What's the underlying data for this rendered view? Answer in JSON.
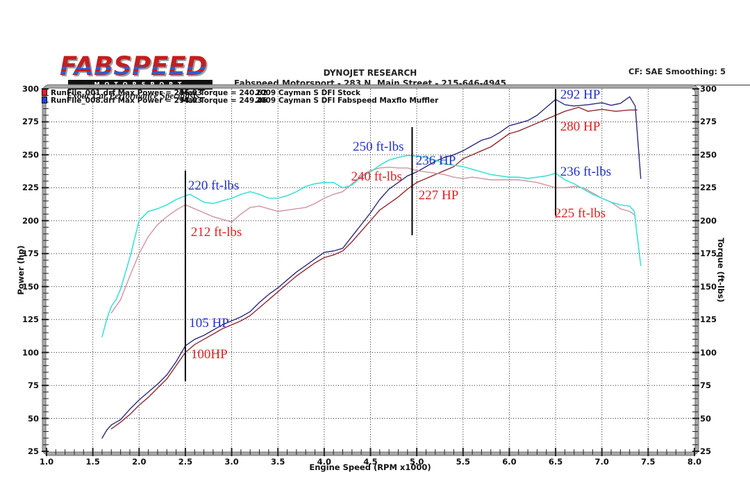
{
  "logo": {
    "brand": "FABSPEED",
    "sub": "MOTORSPORT",
    "tagline": "Exotic Car Performance Specialists"
  },
  "header": {
    "title": "DYNOJET RESEARCH",
    "subtitle": "Fabspeed Motorsport - 283 N. Main Street - 215-646-4945",
    "settings": "CF: SAE  Smoothing: 5"
  },
  "legend": {
    "rows": [
      {
        "file": "RunFile_001.drf Max Power = 286.03",
        "torque": "Max Torque = 240.62",
        "desc": "2009 Cayman S DFI Stock",
        "chip_color": "#e02020"
      },
      {
        "file": "RunFile_008.drf Max Power = 294.03",
        "torque": "Max Torque = 249.46",
        "desc": "2009 Cayman S DFI Fabspeed Maxflo Muffler",
        "chip_color": "#2040e0"
      }
    ]
  },
  "colors": {
    "annotation_blue": "#2232c8",
    "annotation_red": "#e02020",
    "grid": "#1a1a1a",
    "frame": "#a8a8a8",
    "frame_edge": "#6e6e6e",
    "marker": "#000000"
  },
  "chart_data": {
    "type": "line",
    "title": "DYNOJET RESEARCH",
    "xlabel": "Engine Speed (RPM x1000)",
    "ylabel_left": "Power (hp)",
    "ylabel_right": "Torque (ft-lbs)",
    "xlim": [
      1.0,
      8.0
    ],
    "ylim": [
      25,
      300
    ],
    "x_ticks": [
      1.0,
      1.5,
      2.0,
      2.5,
      3.0,
      3.5,
      4.0,
      4.5,
      5.0,
      5.5,
      6.0,
      6.5,
      7.0,
      7.5,
      8.0
    ],
    "y_ticks": [
      25,
      50,
      75,
      100,
      125,
      150,
      175,
      200,
      225,
      250,
      275,
      300
    ],
    "grid": "dotted",
    "legend_position": "top-left",
    "series": [
      {
        "name": "Power - 2009 Cayman S DFI Stock (RunFile_001.drf)",
        "unit": "hp",
        "max": 286.03,
        "color": "#8e2a30",
        "width": 1.4,
        "points": [
          [
            1.7,
            42
          ],
          [
            1.8,
            47
          ],
          [
            1.9,
            53
          ],
          [
            2,
            60
          ],
          [
            2.1,
            66
          ],
          [
            2.2,
            73
          ],
          [
            2.3,
            80
          ],
          [
            2.4,
            90
          ],
          [
            2.5,
            100
          ],
          [
            2.6,
            106
          ],
          [
            2.7,
            110
          ],
          [
            2.8,
            114
          ],
          [
            2.9,
            118
          ],
          [
            3,
            121
          ],
          [
            3.1,
            124
          ],
          [
            3.2,
            128
          ],
          [
            3.3,
            134
          ],
          [
            3.4,
            140
          ],
          [
            3.5,
            146
          ],
          [
            3.6,
            152
          ],
          [
            3.7,
            158
          ],
          [
            3.8,
            163
          ],
          [
            3.9,
            168
          ],
          [
            4,
            172
          ],
          [
            4.1,
            174
          ],
          [
            4.2,
            177
          ],
          [
            4.3,
            184
          ],
          [
            4.4,
            192
          ],
          [
            4.5,
            200
          ],
          [
            4.6,
            208
          ],
          [
            4.7,
            213
          ],
          [
            4.8,
            218
          ],
          [
            4.9,
            224
          ],
          [
            5,
            229
          ],
          [
            5.1,
            232
          ],
          [
            5.2,
            235
          ],
          [
            5.3,
            238
          ],
          [
            5.4,
            241
          ],
          [
            5.5,
            247
          ],
          [
            5.6,
            250
          ],
          [
            5.7,
            253
          ],
          [
            5.8,
            256
          ],
          [
            5.9,
            261
          ],
          [
            6,
            266
          ],
          [
            6.1,
            268
          ],
          [
            6.2,
            271
          ],
          [
            6.3,
            274
          ],
          [
            6.4,
            277
          ],
          [
            6.5,
            280
          ],
          [
            6.6,
            283
          ],
          [
            6.7,
            285
          ],
          [
            6.75,
            286
          ],
          [
            6.85,
            283
          ],
          [
            7,
            284.5
          ],
          [
            7.15,
            283
          ],
          [
            7.3,
            284
          ],
          [
            7.38,
            284
          ]
        ]
      },
      {
        "name": "Power - 2009 Cayman S DFI Fabspeed Maxflo Muffler (RunFile_008.drf)",
        "unit": "hp",
        "max": 294.03,
        "color": "#2a2a7c",
        "width": 1.4,
        "points": [
          [
            1.6,
            35
          ],
          [
            1.65,
            41
          ],
          [
            1.7,
            45
          ],
          [
            1.75,
            47
          ],
          [
            1.8,
            49
          ],
          [
            1.9,
            57
          ],
          [
            2,
            64
          ],
          [
            2.1,
            70
          ],
          [
            2.2,
            76
          ],
          [
            2.3,
            83
          ],
          [
            2.4,
            93
          ],
          [
            2.5,
            105
          ],
          [
            2.6,
            110
          ],
          [
            2.7,
            113
          ],
          [
            2.8,
            117
          ],
          [
            2.9,
            121
          ],
          [
            3,
            124
          ],
          [
            3.1,
            127
          ],
          [
            3.2,
            131
          ],
          [
            3.3,
            138
          ],
          [
            3.4,
            144
          ],
          [
            3.5,
            149
          ],
          [
            3.6,
            155
          ],
          [
            3.7,
            161
          ],
          [
            3.8,
            166
          ],
          [
            3.9,
            171
          ],
          [
            4,
            176
          ],
          [
            4.1,
            177
          ],
          [
            4.2,
            179
          ],
          [
            4.3,
            188
          ],
          [
            4.4,
            197
          ],
          [
            4.5,
            206
          ],
          [
            4.6,
            216
          ],
          [
            4.7,
            224
          ],
          [
            4.8,
            229
          ],
          [
            4.9,
            234
          ],
          [
            5,
            237
          ],
          [
            5.1,
            241
          ],
          [
            5.2,
            245
          ],
          [
            5.3,
            248
          ],
          [
            5.4,
            250
          ],
          [
            5.5,
            253
          ],
          [
            5.6,
            257
          ],
          [
            5.7,
            261
          ],
          [
            5.8,
            263
          ],
          [
            5.9,
            267
          ],
          [
            6,
            272
          ],
          [
            6.1,
            274
          ],
          [
            6.2,
            276
          ],
          [
            6.3,
            280
          ],
          [
            6.4,
            286
          ],
          [
            6.5,
            292
          ],
          [
            6.6,
            288
          ],
          [
            6.7,
            287
          ],
          [
            6.85,
            288
          ],
          [
            7,
            289.5
          ],
          [
            7.1,
            287.5
          ],
          [
            7.2,
            289
          ],
          [
            7.3,
            294
          ],
          [
            7.36,
            287
          ],
          [
            7.42,
            232
          ]
        ]
      },
      {
        "name": "Torque - 2009 Cayman S DFI Stock (RunFile_001.drf)",
        "unit": "ft-lbs",
        "max": 240.62,
        "color": "#cf93a0",
        "width": 1.4,
        "points": [
          [
            1.7,
            130
          ],
          [
            1.8,
            140
          ],
          [
            1.9,
            158
          ],
          [
            2,
            175
          ],
          [
            2.1,
            188
          ],
          [
            2.2,
            197
          ],
          [
            2.3,
            203
          ],
          [
            2.4,
            208
          ],
          [
            2.5,
            212
          ],
          [
            2.6,
            209
          ],
          [
            2.7,
            206
          ],
          [
            2.8,
            203
          ],
          [
            2.9,
            201
          ],
          [
            3,
            199
          ],
          [
            3.1,
            205
          ],
          [
            3.2,
            210
          ],
          [
            3.3,
            211
          ],
          [
            3.4,
            209
          ],
          [
            3.5,
            207
          ],
          [
            3.6,
            208
          ],
          [
            3.7,
            209
          ],
          [
            3.8,
            210
          ],
          [
            3.9,
            213
          ],
          [
            4,
            217
          ],
          [
            4.1,
            220
          ],
          [
            4.2,
            222
          ],
          [
            4.3,
            228
          ],
          [
            4.4,
            234
          ],
          [
            4.5,
            238
          ],
          [
            4.6,
            240
          ],
          [
            4.7,
            240.6
          ],
          [
            4.8,
            240
          ],
          [
            4.9,
            240
          ],
          [
            5,
            238
          ],
          [
            5.1,
            237
          ],
          [
            5.2,
            236
          ],
          [
            5.3,
            235
          ],
          [
            5.4,
            233
          ],
          [
            5.5,
            232
          ],
          [
            5.6,
            233
          ],
          [
            5.7,
            232
          ],
          [
            5.8,
            231
          ],
          [
            5.9,
            231
          ],
          [
            6,
            231
          ],
          [
            6.1,
            231
          ],
          [
            6.2,
            230
          ],
          [
            6.3,
            229
          ],
          [
            6.4,
            227
          ],
          [
            6.5,
            225
          ],
          [
            6.6,
            225
          ],
          [
            6.7,
            226
          ],
          [
            6.8,
            225
          ],
          [
            6.9,
            221
          ],
          [
            7,
            217
          ],
          [
            7.1,
            214
          ],
          [
            7.2,
            209
          ],
          [
            7.3,
            207
          ],
          [
            7.36,
            204
          ]
        ]
      },
      {
        "name": "Torque - 2009 Cayman S DFI Fabspeed Maxflo Muffler (RunFile_008.drf)",
        "unit": "ft-lbs",
        "max": 249.46,
        "color": "#3fe0d8",
        "width": 1.6,
        "points": [
          [
            1.6,
            112
          ],
          [
            1.65,
            125
          ],
          [
            1.7,
            135
          ],
          [
            1.75,
            140
          ],
          [
            1.8,
            148
          ],
          [
            1.9,
            172
          ],
          [
            2,
            200
          ],
          [
            2.1,
            207
          ],
          [
            2.2,
            209
          ],
          [
            2.3,
            212
          ],
          [
            2.4,
            216
          ],
          [
            2.5,
            219
          ],
          [
            2.55,
            220
          ],
          [
            2.6,
            218
          ],
          [
            2.7,
            214
          ],
          [
            2.8,
            213
          ],
          [
            2.9,
            215
          ],
          [
            3,
            217
          ],
          [
            3.1,
            220
          ],
          [
            3.2,
            222
          ],
          [
            3.3,
            220
          ],
          [
            3.4,
            217
          ],
          [
            3.5,
            217
          ],
          [
            3.6,
            219
          ],
          [
            3.7,
            222
          ],
          [
            3.8,
            226
          ],
          [
            3.9,
            228
          ],
          [
            4,
            229
          ],
          [
            4.1,
            229
          ],
          [
            4.2,
            225
          ],
          [
            4.3,
            227
          ],
          [
            4.4,
            233
          ],
          [
            4.5,
            237
          ],
          [
            4.6,
            242
          ],
          [
            4.7,
            246
          ],
          [
            4.8,
            248
          ],
          [
            4.9,
            249.5
          ],
          [
            5,
            249
          ],
          [
            5.1,
            248
          ],
          [
            5.2,
            246
          ],
          [
            5.3,
            243
          ],
          [
            5.4,
            242
          ],
          [
            5.5,
            241
          ],
          [
            5.6,
            239
          ],
          [
            5.7,
            237
          ],
          [
            5.8,
            235
          ],
          [
            5.9,
            234
          ],
          [
            6,
            233
          ],
          [
            6.1,
            233
          ],
          [
            6.2,
            232
          ],
          [
            6.3,
            233
          ],
          [
            6.4,
            234
          ],
          [
            6.5,
            236
          ],
          [
            6.6,
            231
          ],
          [
            6.7,
            228
          ],
          [
            6.8,
            224
          ],
          [
            6.9,
            220
          ],
          [
            7,
            217
          ],
          [
            7.1,
            214
          ],
          [
            7.2,
            212
          ],
          [
            7.3,
            211
          ],
          [
            7.35,
            207
          ],
          [
            7.42,
            166
          ]
        ]
      }
    ],
    "annotations": [
      {
        "text": "220 ft-lbs",
        "color": "blue",
        "x": 2.53,
        "y": 226
      },
      {
        "text": "212 ft-lbs",
        "color": "red",
        "x": 2.56,
        "y": 191
      },
      {
        "text": "105 HP",
        "color": "blue",
        "x": 2.54,
        "y": 122
      },
      {
        "text": "100HP",
        "color": "red",
        "x": 2.56,
        "y": 98
      },
      {
        "text": "250 ft-lbs",
        "color": "blue",
        "x": 4.31,
        "y": 256
      },
      {
        "text": "240 ft-lbs",
        "color": "red",
        "x": 4.29,
        "y": 233
      },
      {
        "text": "236 HP",
        "color": "blue",
        "x": 4.99,
        "y": 245
      },
      {
        "text": "227 HP",
        "color": "red",
        "x": 5.02,
        "y": 219
      },
      {
        "text": "292 HP",
        "color": "blue",
        "x": 6.55,
        "y": 295
      },
      {
        "text": "280 HP",
        "color": "red",
        "x": 6.55,
        "y": 271
      },
      {
        "text": "236 ft-lbs",
        "color": "blue",
        "x": 6.55,
        "y": 237
      },
      {
        "text": "225 ft-lbs",
        "color": "red",
        "x": 6.49,
        "y": 205
      }
    ],
    "marker_lines": [
      {
        "x": 2.5,
        "y1": 238,
        "y2": 78
      },
      {
        "x": 4.95,
        "y1": 271,
        "y2": 189
      },
      {
        "x": 6.5,
        "y1": 300,
        "y2": 204
      }
    ]
  }
}
